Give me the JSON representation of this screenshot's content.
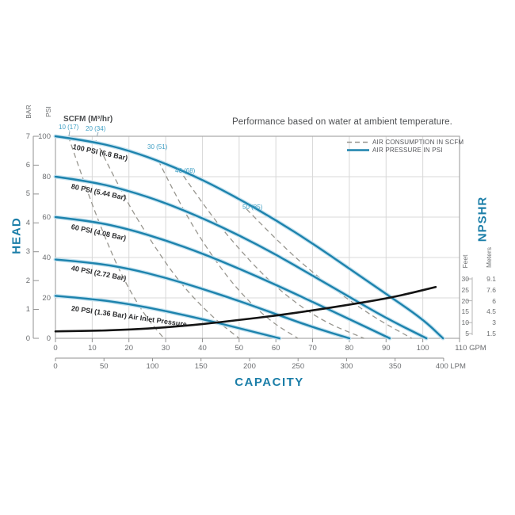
{
  "legend": {
    "air_consumption": "AIR CONSUMPTION IN SCFM",
    "air_pressure": "AIR PRESSURE IN PSI"
  },
  "colors": {
    "curve_blue": "#1d83ad",
    "curve_halo": "#c6e3f0",
    "accent_blue": "#1b7ea8",
    "scfm_label_blue": "#3f9fc4",
    "dashed_gray": "#98968f",
    "npshr_black": "#141414",
    "grid": "#d8d8d8",
    "plot_border": "#a8a8a8",
    "tick": "#909090"
  },
  "chart_data": {
    "type": "line",
    "title": "Performance based on water at ambient temperature.",
    "scfm_header": "SCFM (M³/hr)",
    "x_axis": {
      "label": "CAPACITY",
      "primary": {
        "unit": "GPM",
        "min": 0,
        "max": 110,
        "ticks": [
          0,
          10,
          20,
          30,
          40,
          50,
          60,
          70,
          80,
          90,
          100,
          110
        ]
      },
      "secondary": {
        "unit": "LPM",
        "min": 0,
        "max": 400,
        "ticks": [
          0,
          50,
          100,
          150,
          200,
          250,
          300,
          350,
          400
        ]
      }
    },
    "y_axis_left": {
      "label": "HEAD",
      "psi": {
        "unit": "PSI",
        "min": 0,
        "max": 100,
        "ticks": [
          100,
          80,
          60,
          40,
          20,
          0
        ],
        "gridlines": [
          20,
          40,
          60,
          80
        ]
      },
      "bar": {
        "unit": "BAR",
        "min": 0,
        "max": 7,
        "ticks": [
          7,
          6,
          5,
          4,
          3,
          2,
          1,
          0
        ]
      }
    },
    "y_axis_right": {
      "label": "NPSHR",
      "feet_header": "Feet",
      "meters_header": "Meters",
      "rows": [
        {
          "feet": 30,
          "meters": "9.1"
        },
        {
          "feet": 25,
          "meters": "7.6"
        },
        {
          "feet": 20,
          "meters": "6"
        },
        {
          "feet": 15,
          "meters": "4.5"
        },
        {
          "feet": 10,
          "meters": "3"
        },
        {
          "feet": 5,
          "meters": "1.5"
        }
      ],
      "bracket_ticks_feet": [
        30,
        20,
        10,
        5
      ]
    },
    "air_pressure_curves": [
      {
        "label": "100 PSI (6.8 Bar)",
        "points_gpm_psi": [
          [
            0,
            100
          ],
          [
            10,
            97.5
          ],
          [
            20,
            93
          ],
          [
            30,
            86.5
          ],
          [
            40,
            78.5
          ],
          [
            50,
            69
          ],
          [
            60,
            58.5
          ],
          [
            70,
            47
          ],
          [
            80,
            34.5
          ],
          [
            90,
            22
          ],
          [
            100,
            9.5
          ],
          [
            105.5,
            0
          ]
        ]
      },
      {
        "label": "80 PSI (5.44 Bar)",
        "points_gpm_psi": [
          [
            0,
            80
          ],
          [
            10,
            77.5
          ],
          [
            20,
            73
          ],
          [
            30,
            67
          ],
          [
            40,
            59.5
          ],
          [
            50,
            51
          ],
          [
            60,
            41.5
          ],
          [
            70,
            31
          ],
          [
            80,
            20.5
          ],
          [
            90,
            10
          ],
          [
            101,
            0
          ]
        ]
      },
      {
        "label": "60 PSI (4.08 Bar)",
        "points_gpm_psi": [
          [
            0,
            60
          ],
          [
            10,
            58
          ],
          [
            20,
            54
          ],
          [
            30,
            48.5
          ],
          [
            40,
            42
          ],
          [
            50,
            34.5
          ],
          [
            60,
            26.5
          ],
          [
            70,
            18
          ],
          [
            80,
            9.5
          ],
          [
            91,
            0
          ]
        ]
      },
      {
        "label": "40 PSI (2.72 Bar)",
        "points_gpm_psi": [
          [
            0,
            39
          ],
          [
            10,
            37.5
          ],
          [
            20,
            34.5
          ],
          [
            30,
            30
          ],
          [
            40,
            24.5
          ],
          [
            50,
            18.5
          ],
          [
            60,
            12
          ],
          [
            70,
            5.5
          ],
          [
            80,
            0
          ]
        ]
      },
      {
        "label": "20 PSI (1.36 Bar) Air Inlet Pressure",
        "points_gpm_psi": [
          [
            0,
            21
          ],
          [
            10,
            19.5
          ],
          [
            20,
            17
          ],
          [
            30,
            13.5
          ],
          [
            40,
            9.5
          ],
          [
            50,
            5
          ],
          [
            61,
            0
          ]
        ]
      }
    ],
    "air_consumption_curves": [
      {
        "label": "10 (17)",
        "points_gpm_psi": [
          [
            3.5,
            100
          ],
          [
            8,
            76
          ],
          [
            13,
            52
          ],
          [
            18,
            31
          ],
          [
            24,
            12
          ],
          [
            29.5,
            0
          ]
        ]
      },
      {
        "label": "20 (34)",
        "points_gpm_psi": [
          [
            11,
            98
          ],
          [
            18,
            72
          ],
          [
            26,
            48
          ],
          [
            34,
            27
          ],
          [
            43,
            10
          ],
          [
            50,
            0
          ]
        ]
      },
      {
        "label": "30 (51)",
        "points_gpm_psi": [
          [
            28,
            88
          ],
          [
            34,
            66
          ],
          [
            41,
            45
          ],
          [
            49,
            25
          ],
          [
            58,
            9
          ],
          [
            66,
            0
          ]
        ]
      },
      {
        "label": "40 (68)",
        "points_gpm_psi": [
          [
            33.5,
            84
          ],
          [
            41,
            64
          ],
          [
            50,
            44
          ],
          [
            60,
            25
          ],
          [
            72,
            9
          ],
          [
            84,
            0
          ]
        ]
      },
      {
        "label": "50 (85)",
        "points_gpm_psi": [
          [
            52,
            64
          ],
          [
            60,
            49
          ],
          [
            69,
            34
          ],
          [
            79,
            20
          ],
          [
            88,
            9
          ],
          [
            97,
            0
          ]
        ]
      }
    ],
    "npshr_curve": {
      "points_gpm_feet": [
        [
          0,
          6
        ],
        [
          10,
          6.2
        ],
        [
          20,
          6.8
        ],
        [
          30,
          7.8
        ],
        [
          40,
          9.3
        ],
        [
          50,
          11.2
        ],
        [
          60,
          13.2
        ],
        [
          70,
          15.6
        ],
        [
          80,
          18.2
        ],
        [
          90,
          21
        ],
        [
          97,
          23.6
        ],
        [
          103.5,
          26.3
        ]
      ]
    }
  }
}
